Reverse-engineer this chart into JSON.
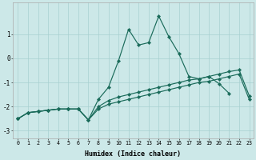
{
  "xlabel": "Humidex (Indice chaleur)",
  "bg_color": "#cce8e8",
  "grid_color": "#a8d0d0",
  "line_color": "#1a6b5a",
  "xlim_min": -0.5,
  "xlim_max": 23.4,
  "ylim_min": -3.3,
  "ylim_max": 2.3,
  "yticks": [
    -3,
    -2,
    -1,
    0,
    1
  ],
  "xtick_labels": [
    "0",
    "1",
    "2",
    "3",
    "4",
    "5",
    "6",
    "7",
    "8",
    "9",
    "10",
    "11",
    "12",
    "13",
    "14",
    "15",
    "16",
    "17",
    "18",
    "19",
    "20",
    "21",
    "22",
    "23"
  ],
  "xtick_vals": [
    0,
    1,
    2,
    3,
    4,
    5,
    6,
    7,
    8,
    9,
    10,
    11,
    12,
    13,
    14,
    15,
    16,
    17,
    18,
    19,
    20,
    21,
    22,
    23
  ],
  "series1_x": [
    0,
    1,
    2,
    3,
    4,
    5,
    6,
    7,
    8,
    9,
    10,
    11,
    12,
    13,
    14,
    15,
    16,
    17,
    18,
    19,
    20,
    21
  ],
  "series1_y": [
    -2.5,
    -2.25,
    -2.2,
    -2.15,
    -2.1,
    -2.1,
    -2.1,
    -2.55,
    -1.7,
    -1.2,
    -0.1,
    1.2,
    0.55,
    0.65,
    1.75,
    0.9,
    0.2,
    -0.75,
    -0.85,
    -0.75,
    -1.05,
    -1.45
  ],
  "series2_x": [
    0,
    1,
    2,
    3,
    4,
    5,
    6,
    7,
    8,
    9,
    10,
    11,
    12,
    13,
    14,
    15,
    16,
    17,
    18,
    19,
    20,
    21,
    22,
    23
  ],
  "series2_y": [
    -2.5,
    -2.25,
    -2.2,
    -2.15,
    -2.1,
    -2.1,
    -2.1,
    -2.55,
    -2.0,
    -1.75,
    -1.6,
    -1.5,
    -1.4,
    -1.3,
    -1.2,
    -1.1,
    -1.0,
    -0.9,
    -0.85,
    -0.75,
    -0.65,
    -0.55,
    -0.48,
    -1.55
  ],
  "series3_x": [
    0,
    1,
    2,
    3,
    4,
    5,
    6,
    7,
    8,
    9,
    10,
    11,
    12,
    13,
    14,
    15,
    16,
    17,
    18,
    19,
    20,
    21,
    22,
    23
  ],
  "series3_y": [
    -2.5,
    -2.25,
    -2.2,
    -2.15,
    -2.1,
    -2.1,
    -2.1,
    -2.55,
    -2.1,
    -1.9,
    -1.8,
    -1.7,
    -1.6,
    -1.5,
    -1.4,
    -1.3,
    -1.2,
    -1.1,
    -1.0,
    -0.95,
    -0.85,
    -0.75,
    -0.65,
    -1.7
  ]
}
